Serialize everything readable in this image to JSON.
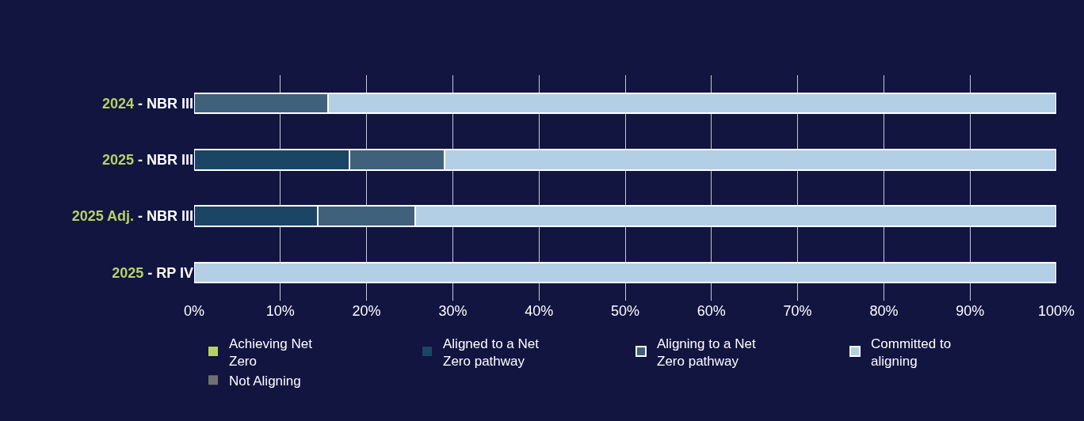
{
  "chart_data": {
    "type": "bar",
    "orientation": "horizontal",
    "stacked": true,
    "categories": [
      "2024 - NBR III",
      "2025 - NBR III",
      "2025 Adj. - NBR III",
      "2025 - RP IV"
    ],
    "series": [
      {
        "name": "Achieving Net Zero",
        "color": "#b5d264",
        "values": [
          0,
          0,
          0,
          0
        ]
      },
      {
        "name": "Aligned to a Net Zero pathway",
        "color": "#1b4565",
        "values": [
          0,
          18,
          14.3,
          0
        ]
      },
      {
        "name": "Aligning to a Net Zero pathway",
        "color": "#3f617c",
        "values": [
          15.5,
          11,
          11.3,
          0
        ]
      },
      {
        "name": "Committed to aligning",
        "color": "#b3cfe6",
        "values": [
          84.5,
          71,
          74.4,
          100
        ]
      },
      {
        "name": "Not Aligning",
        "color": "#707070",
        "values": [
          0,
          0,
          0,
          0
        ]
      }
    ],
    "xlim": [
      0,
      100
    ],
    "xticks": [
      {
        "value": 0,
        "label": "0%"
      },
      {
        "value": 10,
        "label": "10%"
      },
      {
        "value": 20,
        "label": "20%"
      },
      {
        "value": 30,
        "label": "30%"
      },
      {
        "value": 40,
        "label": "40%"
      },
      {
        "value": 50,
        "label": "50%"
      },
      {
        "value": 60,
        "label": "60%"
      },
      {
        "value": 70,
        "label": "70%"
      },
      {
        "value": 80,
        "label": "80%"
      },
      {
        "value": 90,
        "label": "90%"
      },
      {
        "value": 100,
        "label": "100%"
      }
    ],
    "grid": "x",
    "legend": "bottom"
  }
}
